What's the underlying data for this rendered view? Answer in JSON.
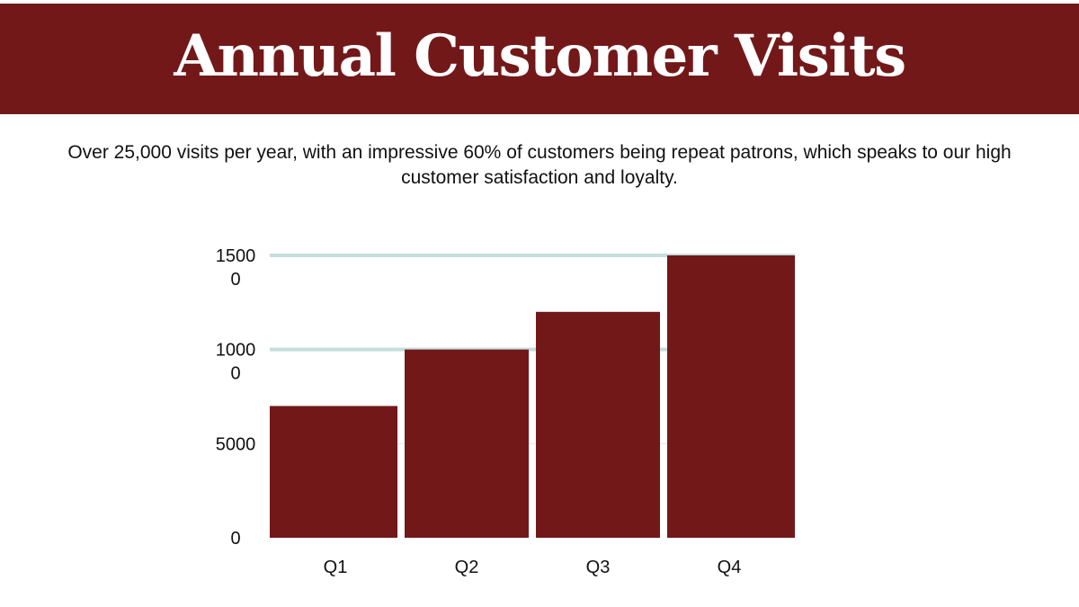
{
  "header": {
    "title": "Annual Customer Visits"
  },
  "subtitle": "Over 25,000 visits per year, with an impressive 60% of customers being repeat patrons, which speaks to our high customer satisfaction and loyalty.",
  "colors": {
    "title_bar": "#731819",
    "bar": "#731819",
    "gridline": "#c5dddc",
    "minor_gridline": "#e6e6e6",
    "text": "#111111"
  },
  "chart_data": {
    "type": "bar",
    "title": "Annual Customer Visits",
    "xlabel": "",
    "ylabel": "",
    "categories": [
      "Q1",
      "Q2",
      "Q3",
      "Q4"
    ],
    "values": [
      7000,
      10000,
      12000,
      15000
    ],
    "ylim": [
      0,
      15000
    ],
    "yticks": [
      0,
      5000,
      10000,
      15000
    ],
    "ytick_labels": [
      [
        "0"
      ],
      [
        "5000"
      ],
      [
        "1000",
        "0"
      ],
      [
        "1500",
        "0"
      ]
    ],
    "grid": true,
    "legend": "none"
  }
}
